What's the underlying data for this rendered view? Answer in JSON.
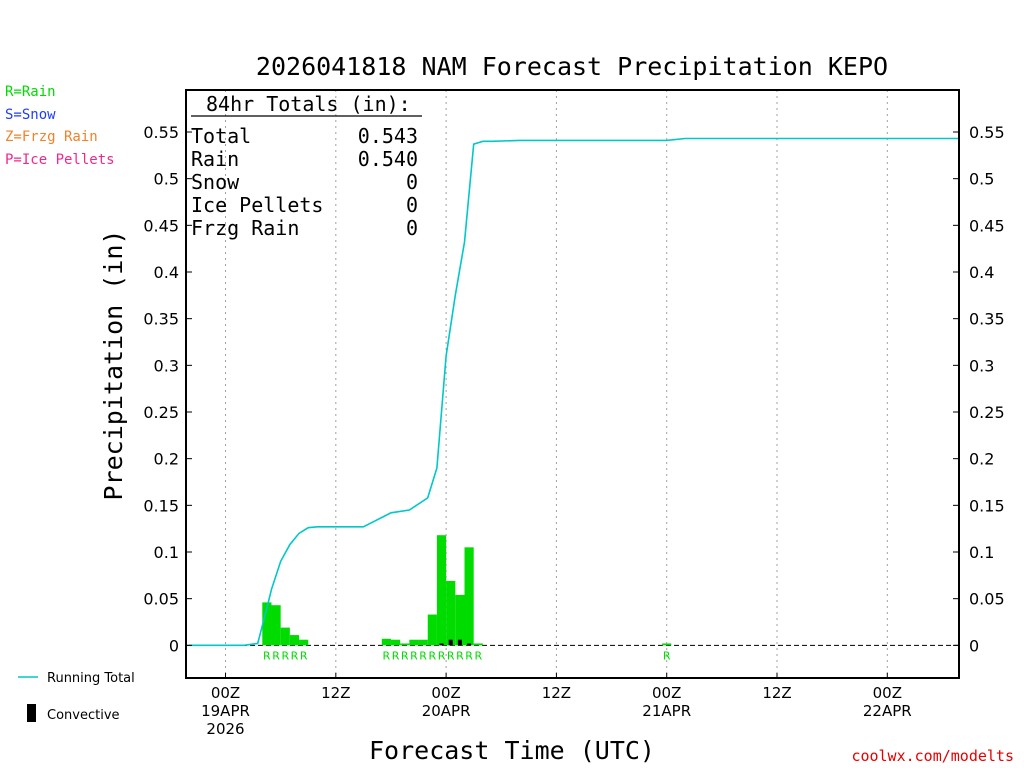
{
  "chart_data": {
    "type": "bar",
    "title": "2026041818 NAM Forecast Precipitation KEPO",
    "xlabel": "Forecast Time (UTC)",
    "ylabel": "Precipitation (in)",
    "ylim": [
      -0.035,
      0.595
    ],
    "y_ticks": [
      "0",
      "0.05",
      "0.1",
      "0.15",
      "0.2",
      "0.25",
      "0.3",
      "0.35",
      "0.4",
      "0.45",
      "0.5",
      "0.55"
    ],
    "y_tick_values": [
      0,
      0.05,
      0.1,
      0.15,
      0.2,
      0.25,
      0.3,
      0.35,
      0.4,
      0.45,
      0.5,
      0.55
    ],
    "xlim_hours": [
      -4.3,
      79.8
    ],
    "x_ticks": [
      {
        "hour": 0,
        "line1": "00Z",
        "line2": "19APR",
        "line3": "2026"
      },
      {
        "hour": 12,
        "line1": "12Z",
        "line2": "",
        "line3": ""
      },
      {
        "hour": 24,
        "line1": "00Z",
        "line2": "20APR",
        "line3": ""
      },
      {
        "hour": 36,
        "line1": "12Z",
        "line2": "",
        "line3": ""
      },
      {
        "hour": 48,
        "line1": "00Z",
        "line2": "21APR",
        "line3": ""
      },
      {
        "hour": 60,
        "line1": "12Z",
        "line2": "",
        "line3": ""
      },
      {
        "hour": 72,
        "line1": "00Z",
        "line2": "22APR",
        "line3": ""
      }
    ],
    "bar_hours": [
      4.5,
      5.5,
      6.5,
      7.5,
      8.5,
      17.5,
      18.5,
      19.5,
      20.5,
      21.5,
      22.5,
      23.5,
      24.5,
      25.5,
      26.5,
      27.5,
      48.0
    ],
    "rain_bar_values": [
      0.046,
      0.043,
      0.019,
      0.011,
      0.006,
      0.007,
      0.006,
      0.002,
      0.006,
      0.006,
      0.033,
      0.118,
      0.069,
      0.054,
      0.105,
      0.002,
      0.002
    ],
    "convective_bar_values": [
      0,
      0,
      0,
      0,
      0,
      0,
      0,
      0,
      0,
      0,
      0,
      0.002,
      0.006,
      0.006,
      0.002,
      0,
      0
    ],
    "bar_type_labels": [
      "R",
      "R",
      "R",
      "R",
      "R",
      "R",
      "R",
      "R",
      "R",
      "R",
      "R",
      "R",
      "R",
      "R",
      "R",
      "R",
      "R"
    ],
    "running_total": {
      "name": "Running Total",
      "hours": [
        -4,
        0,
        2,
        3.5,
        4.5,
        5,
        6,
        7,
        8,
        9,
        10,
        11,
        12,
        15,
        17,
        18,
        20,
        22,
        23,
        24,
        25,
        26,
        27,
        28,
        29,
        32,
        48,
        50,
        79.8
      ],
      "values": [
        0,
        0,
        0,
        0.002,
        0.04,
        0.06,
        0.09,
        0.108,
        0.12,
        0.126,
        0.127,
        0.127,
        0.127,
        0.127,
        0.137,
        0.142,
        0.145,
        0.158,
        0.19,
        0.31,
        0.375,
        0.432,
        0.537,
        0.54,
        0.54,
        0.541,
        0.541,
        0.543,
        0.543
      ]
    },
    "totals_box": {
      "header": "84hr Totals (in):",
      "rows": [
        {
          "label": "Total",
          "value": "0.543"
        },
        {
          "label": "Rain",
          "value": "0.540"
        },
        {
          "label": "Snow",
          "value": "0"
        },
        {
          "label": "Ice Pellets",
          "value": "0"
        },
        {
          "label": "Frzg Rain",
          "value": "0"
        }
      ]
    },
    "type_legend": [
      {
        "text": "R=Rain",
        "color": "#00dc00"
      },
      {
        "text": "S=Snow",
        "color": "#1e3cff"
      },
      {
        "text": "Z=Frzg Rain",
        "color": "#f08228"
      },
      {
        "text": "P=Ice Pellets",
        "color": "#f0288c"
      }
    ],
    "series_legend": [
      {
        "text": "Running Total",
        "color": "#00c8c8"
      },
      {
        "text": "Convective",
        "color": "#000000"
      }
    ],
    "colors": {
      "rain": "#00dc00",
      "convective": "#000000",
      "running_total": "#00c8c8",
      "grid": "#a0a0a0"
    }
  },
  "credit": "coolwx.com/modelts"
}
